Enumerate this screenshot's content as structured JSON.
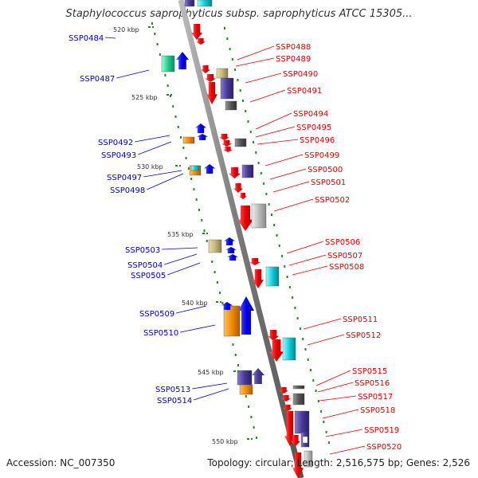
{
  "title": "Staphylococcus saprophyticus subsp. saprophyticus ATCC 15305...",
  "footer": {
    "accession": "Accession: NC_007350",
    "stats": "Topology: circular; Length: 2,516,575 bp; Genes: 2,526"
  },
  "colors": {
    "backbone": "#8a8a8a",
    "forward_label": "#0000cc",
    "reverse_label": "#dd0000",
    "ticks": "#228822"
  },
  "kbp_markers": [
    {
      "label": "520 kbp"
    },
    {
      "label": "525 kbp"
    },
    {
      "label": "530 kbp"
    },
    {
      "label": "535 kbp"
    },
    {
      "label": "540 kbp"
    },
    {
      "label": "545 kbp"
    },
    {
      "label": "550 kbp"
    }
  ],
  "forward_genes": [
    {
      "name": "SSP0484"
    },
    {
      "name": "SSP0487"
    },
    {
      "name": "SSP0492"
    },
    {
      "name": "SSP0493"
    },
    {
      "name": "SSP0497"
    },
    {
      "name": "SSP0498"
    },
    {
      "name": "SSP0503"
    },
    {
      "name": "SSP0504"
    },
    {
      "name": "SSP0505"
    },
    {
      "name": "SSP0509"
    },
    {
      "name": "SSP0510"
    },
    {
      "name": "SSP0513"
    },
    {
      "name": "SSP0514"
    }
  ],
  "reverse_genes": [
    {
      "name": "SSP0488"
    },
    {
      "name": "SSP0489"
    },
    {
      "name": "SSP0490"
    },
    {
      "name": "SSP0491"
    },
    {
      "name": "SSP0494"
    },
    {
      "name": "SSP0495"
    },
    {
      "name": "SSP0496"
    },
    {
      "name": "SSP0499"
    },
    {
      "name": "SSP0500"
    },
    {
      "name": "SSP0501"
    },
    {
      "name": "SSP0502"
    },
    {
      "name": "SSP0506"
    },
    {
      "name": "SSP0507"
    },
    {
      "name": "SSP0508"
    },
    {
      "name": "SSP0511"
    },
    {
      "name": "SSP0512"
    },
    {
      "name": "SSP0515"
    },
    {
      "name": "SSP0516"
    },
    {
      "name": "SSP0517"
    },
    {
      "name": "SSP0518"
    },
    {
      "name": "SSP0519"
    },
    {
      "name": "SSP0520"
    }
  ]
}
